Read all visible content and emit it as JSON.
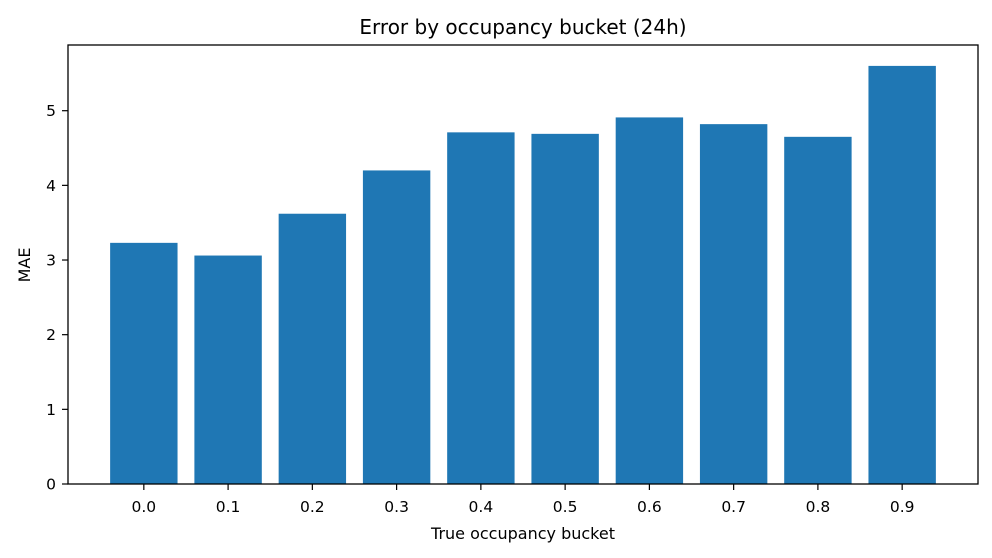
{
  "chart_data": {
    "type": "bar",
    "title": "Error by occupancy bucket (24h)",
    "xlabel": "True occupancy bucket",
    "ylabel": "MAE",
    "categories": [
      "0.0",
      "0.1",
      "0.2",
      "0.3",
      "0.4",
      "0.5",
      "0.6",
      "0.7",
      "0.8",
      "0.9"
    ],
    "values": [
      3.23,
      3.06,
      3.62,
      4.2,
      4.71,
      4.69,
      4.91,
      4.82,
      4.65,
      5.6
    ],
    "ylim": [
      0,
      5.88
    ],
    "yticks": [
      0,
      1,
      2,
      3,
      4,
      5
    ],
    "grid": false,
    "legend": "none",
    "colors": {
      "bar": "#1f77b4",
      "axis": "#000000"
    }
  }
}
